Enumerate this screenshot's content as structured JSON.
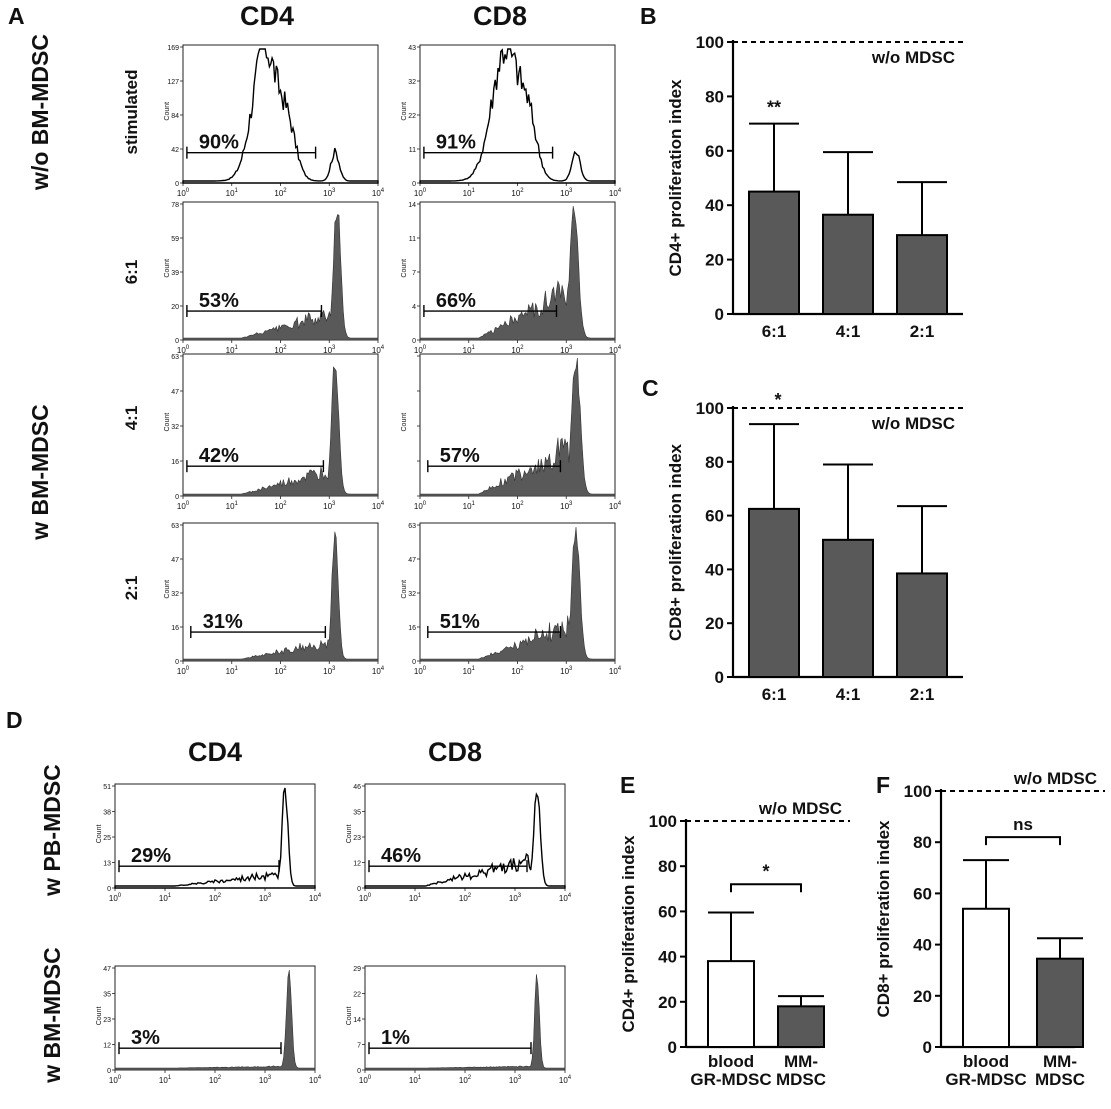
{
  "colors": {
    "filled": "#595959",
    "outline": "#000000",
    "open_bar": "#ffffff",
    "dark_bar": "#595959"
  },
  "panels": {
    "A": "A",
    "B": "B",
    "C": "C",
    "D": "D",
    "E": "E",
    "F": "F"
  },
  "headers": {
    "A_cd4": "CD4",
    "A_cd8": "CD8",
    "D_cd4": "CD4",
    "D_cd8": "CD8"
  },
  "row_labels": {
    "wo_bm": "w/o BM-MDSC",
    "w_bm": "w BM-MDSC",
    "stimulated": "stimulated",
    "r61": "6:1",
    "r41": "4:1",
    "r21": "2:1",
    "w_pb": "w PB-MDSC",
    "w_bm_d": "w BM-MDSC"
  },
  "histograms": {
    "count_label": "Count",
    "x_exponents": [
      "0",
      "1",
      "2",
      "3",
      "4"
    ],
    "panel_A": [
      {
        "id": "a_cd4_stim",
        "yticks": [
          "169",
          "127",
          "84",
          "42",
          "0"
        ],
        "percent": "90%",
        "fill": "outline"
      },
      {
        "id": "a_cd8_stim",
        "yticks": [
          "43",
          "32",
          "22",
          "11",
          "0"
        ],
        "percent": "91%",
        "fill": "outline"
      },
      {
        "id": "a_cd4_61",
        "yticks": [
          "78",
          "59",
          "39",
          "20",
          "0"
        ],
        "percent": "53%",
        "fill": "filled"
      },
      {
        "id": "a_cd8_61",
        "yticks": [
          "14",
          "11",
          "7",
          "4",
          "0"
        ],
        "percent": "66%",
        "fill": "filled"
      },
      {
        "id": "a_cd4_41",
        "yticks": [
          "63",
          "47",
          "32",
          "16",
          "0"
        ],
        "percent": "42%",
        "fill": "filled"
      },
      {
        "id": "a_cd8_41",
        "yticks": [
          "",
          "",
          "",
          "",
          ""
        ],
        "percent": "57%",
        "fill": "filled"
      },
      {
        "id": "a_cd4_21",
        "yticks": [
          "63",
          "47",
          "32",
          "16",
          "0"
        ],
        "percent": "31%",
        "fill": "filled"
      },
      {
        "id": "a_cd8_21",
        "yticks": [
          "63",
          "47",
          "32",
          "16",
          "0"
        ],
        "percent": "51%",
        "fill": "filled"
      }
    ],
    "panel_D": [
      {
        "id": "d_cd4_pb",
        "yticks": [
          "51",
          "38",
          "25",
          "13",
          "0"
        ],
        "percent": "29%",
        "fill": "outline"
      },
      {
        "id": "d_cd8_pb",
        "yticks": [
          "46",
          "35",
          "23",
          "12",
          "0"
        ],
        "percent": "46%",
        "fill": "outline"
      },
      {
        "id": "d_cd4_bm",
        "yticks": [
          "47",
          "35",
          "23",
          "12",
          "0"
        ],
        "percent": "3%",
        "fill": "filled"
      },
      {
        "id": "d_cd8_bm",
        "yticks": [
          "29",
          "22",
          "14",
          "7",
          "0"
        ],
        "percent": "1%",
        "fill": "filled"
      }
    ]
  },
  "chart_data": [
    {
      "panel": "B",
      "type": "bar",
      "categories": [
        "6:1",
        "4:1",
        "2:1"
      ],
      "values": [
        45,
        36.5,
        29
      ],
      "errors": [
        25,
        23,
        19.5
      ],
      "ylabel": "CD4+ proliferation index",
      "ylim": [
        0,
        100
      ],
      "yticks": [
        0,
        20,
        40,
        60,
        80,
        100
      ],
      "reference": {
        "value": 100,
        "label": "w/o MDSC"
      },
      "significance": [
        {
          "category": "6:1",
          "label": "**"
        }
      ]
    },
    {
      "panel": "C",
      "type": "bar",
      "categories": [
        "6:1",
        "4:1",
        "2:1"
      ],
      "values": [
        62.5,
        51,
        38.5
      ],
      "errors": [
        31.5,
        28,
        25
      ],
      "ylabel": "CD8+ proliferation index",
      "ylim": [
        0,
        100
      ],
      "yticks": [
        0,
        20,
        40,
        60,
        80,
        100
      ],
      "reference": {
        "value": 100,
        "label": "w/o MDSC"
      },
      "significance": [
        {
          "category": "6:1",
          "label": "*"
        }
      ]
    },
    {
      "panel": "E",
      "type": "bar",
      "categories": [
        [
          "blood",
          "GR-MDSC"
        ],
        [
          "MM-",
          "MDSC"
        ]
      ],
      "values": [
        38,
        18
      ],
      "errors": [
        21.5,
        4.5
      ],
      "bar_styles": [
        "open",
        "dark"
      ],
      "ylabel": "CD4+ proliferation index",
      "ylim": [
        0,
        100
      ],
      "yticks": [
        0,
        20,
        40,
        60,
        80,
        100
      ],
      "reference": {
        "value": 100,
        "label": "w/o MDSC"
      },
      "bracket": {
        "label": "*",
        "y": 72
      }
    },
    {
      "panel": "F",
      "type": "bar",
      "categories": [
        [
          "blood",
          "GR-MDSC"
        ],
        [
          "MM-",
          "MDSC"
        ]
      ],
      "values": [
        54,
        34.5
      ],
      "errors": [
        19,
        8
      ],
      "bar_styles": [
        "open",
        "dark"
      ],
      "ylabel": "CD8+ proliferation index",
      "ylim": [
        0,
        100
      ],
      "yticks": [
        0,
        20,
        40,
        60,
        80,
        100
      ],
      "reference": {
        "value": 100,
        "label": "w/o MDSC"
      },
      "bracket": {
        "label": "ns",
        "y": 82
      }
    }
  ]
}
